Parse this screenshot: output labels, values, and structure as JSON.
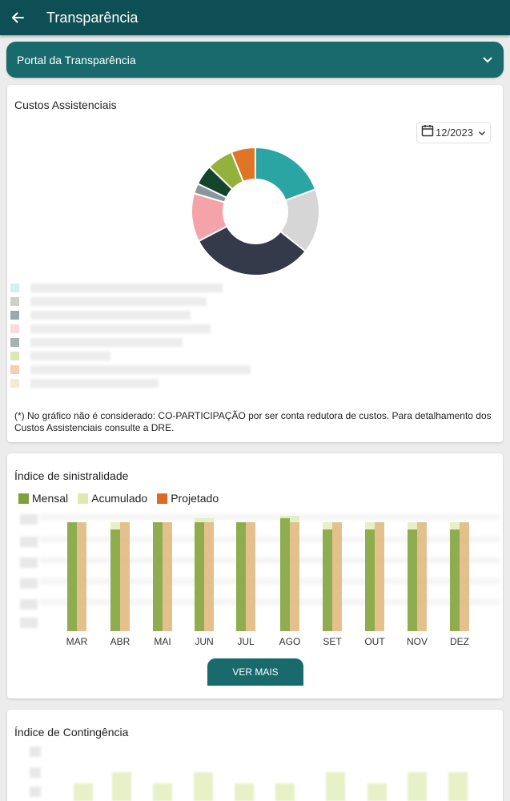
{
  "appbar": {
    "title": "Transparência"
  },
  "portal": {
    "label": "Portal da Transparência"
  },
  "custos": {
    "title": "Custos Assistenciais",
    "date": "12/2023",
    "footnote": "(*) No gráfico não é considerado: CO-PARTICIPAÇÃO por ser  conta redutora de custos. Para detalhamento dos Custos Assistenciais consulte a DRE.",
    "donut": {
      "segments": [
        {
          "color": "#2aa5a4",
          "value": 19
        },
        {
          "color": "#d6d6d6",
          "value": 16
        },
        {
          "color": "#353a4a",
          "value": 31
        },
        {
          "color": "#f4a3a9",
          "value": 12
        },
        {
          "color": "#8a959d",
          "value": 2.5
        },
        {
          "color": "#12452a",
          "value": 5
        },
        {
          "color": "#93b23b",
          "value": 6.5
        },
        {
          "color": "#e07427",
          "value": 6
        }
      ]
    },
    "legend_colors": [
      "#d9eef0",
      "#cfcfcf",
      "#9ea6ab",
      "#fadadd",
      "#a7b0b3",
      "#dbe8b4",
      "#f6cfb0",
      "#f4ead6"
    ]
  },
  "sinistralidade": {
    "title": "Índice de sinistralidade",
    "legend": [
      {
        "label": "Mensal",
        "color": "#7fa13a"
      },
      {
        "label": "Acumulado",
        "color": "#dfeab0"
      },
      {
        "label": "Projetado",
        "color": "#dd6a25"
      }
    ],
    "button": "VER MAIS"
  },
  "chart_data": {
    "type": "bar",
    "categories": [
      "MAR",
      "ABR",
      "MAI",
      "JUN",
      "JUL",
      "AGO",
      "SET",
      "OUT",
      "NOV",
      "DEZ"
    ],
    "series": [
      {
        "name": "Mensal",
        "values": [
          0.91,
          0.85,
          0.91,
          0.91,
          0.91,
          0.94,
          0.85,
          0.85,
          0.85,
          0.85
        ]
      },
      {
        "name": "Acumulado",
        "values": [
          0.91,
          0.91,
          0.91,
          0.94,
          0.91,
          0.96,
          0.91,
          0.91,
          0.91,
          0.91
        ]
      },
      {
        "name": "Projetado",
        "values": [
          0.91,
          0.91,
          0.91,
          0.91,
          0.91,
          0.91,
          0.91,
          0.91,
          0.91,
          0.91
        ]
      }
    ]
  },
  "contingencia": {
    "title": "Índice de Contingência"
  }
}
